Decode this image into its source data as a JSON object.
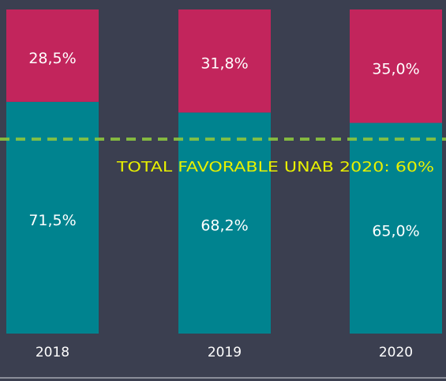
{
  "chart_data": {
    "type": "stacked_bar",
    "categories": [
      "2018",
      "2019",
      "2020"
    ],
    "series": [
      {
        "color": "#00838f",
        "values": [
          71.5,
          68.2,
          65.0
        ],
        "value_labels": [
          "71,5%",
          "68,2%",
          "65,0%"
        ]
      },
      {
        "color": "#c2255c",
        "values": [
          28.5,
          31.8,
          35.0
        ],
        "value_labels": [
          "28,5%",
          "31,8%",
          "35,0%"
        ]
      }
    ],
    "ylim": [
      0,
      100
    ],
    "annotation": {
      "text": "TOTAL FAVORABLE UNAB 2020: 60%",
      "value": 60,
      "color": "#e8f000",
      "line_color": "#8dc63f"
    }
  }
}
